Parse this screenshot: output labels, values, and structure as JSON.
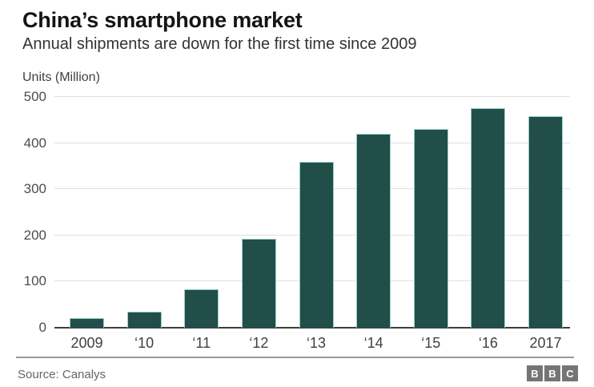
{
  "header": {
    "title": "China’s smartphone market",
    "subtitle": "Annual shipments are down for the first time since 2009"
  },
  "chart_data": {
    "type": "bar",
    "title": "China’s smartphone market",
    "subtitle": "Annual shipments are down for the first time since 2009",
    "unit_label": "Units (Million)",
    "categories": [
      "2009",
      "‘10",
      "‘11",
      "‘12",
      "‘13",
      "‘14",
      "‘15",
      "‘16",
      "2017"
    ],
    "values": [
      20,
      35,
      83,
      193,
      360,
      420,
      430,
      476,
      459
    ],
    "xlabel": "",
    "ylabel": "Units (Million)",
    "ylim": [
      0,
      500
    ],
    "yticks": [
      0,
      100,
      200,
      300,
      400,
      500
    ],
    "grid": true,
    "legend_position": "none",
    "bar_color": "#224e49",
    "bar_edge_color": "#96d0cb",
    "gridline_color": "#e0e0e0",
    "axis_color": "#404040"
  },
  "footer": {
    "source": "Source: Canalys",
    "logo_letters": [
      "B",
      "B",
      "C"
    ]
  }
}
